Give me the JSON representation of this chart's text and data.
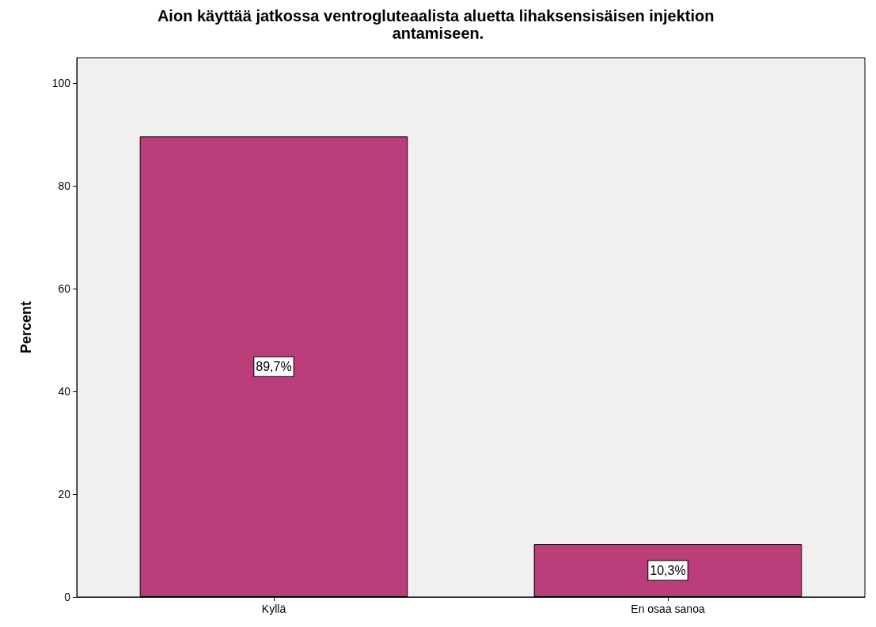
{
  "chart_data": {
    "type": "bar",
    "title": "Aion käyttää jatkossa ventrogluteaalista aluetta lihaksensisäisen injektion antamiseen.",
    "ylabel": "Percent",
    "categories": [
      "Kyllä",
      "En osaa sanoa"
    ],
    "values": [
      89.7,
      10.3
    ],
    "color": "#bb3e7a",
    "value_labels": [
      "89,7%",
      "10,3%"
    ],
    "ylim": [
      0,
      105
    ],
    "yticks": [
      0,
      20,
      40,
      60,
      80,
      100
    ],
    "grid": false
  }
}
